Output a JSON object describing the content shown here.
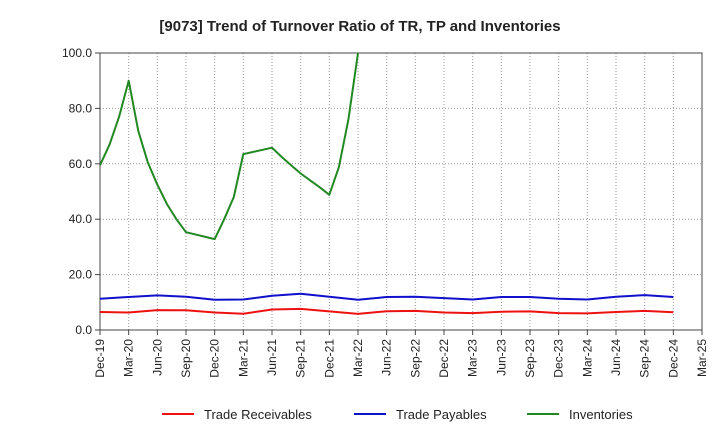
{
  "chart_data": {
    "type": "line",
    "title": "[9073]  Trend of Turnover Ratio of TR, TP and Inventories",
    "xlabel": "",
    "ylabel": "",
    "ylim": [
      0,
      100
    ],
    "yticks": [
      "0.0",
      "20.0",
      "40.0",
      "60.0",
      "80.0",
      "100.0"
    ],
    "grid": true,
    "legend_position": "bottom",
    "categories": [
      "Dec-19",
      "Mar-20",
      "Jun-20",
      "Sep-20",
      "Dec-20",
      "Mar-21",
      "Jun-21",
      "Sep-21",
      "Dec-21",
      "Mar-22",
      "Jun-22",
      "Sep-22",
      "Dec-22",
      "Mar-23",
      "Jun-23",
      "Sep-23",
      "Dec-23",
      "Mar-24",
      "Jun-24",
      "Sep-24",
      "Dec-24",
      "Mar-25"
    ],
    "series": [
      {
        "name": "Trade Receivables",
        "color": "#ee1111",
        "x": [
          "Dec-19",
          "Mar-20",
          "Jun-20",
          "Sep-20",
          "Dec-20",
          "Mar-21",
          "Jun-21",
          "Sep-21",
          "Dec-21",
          "Mar-22",
          "Jun-22",
          "Sep-22",
          "Dec-22",
          "Mar-23",
          "Jun-23",
          "Sep-23",
          "Dec-23",
          "Mar-24",
          "Jun-24",
          "Sep-24",
          "Dec-24"
        ],
        "values": [
          6.5,
          6.3,
          7.2,
          7.1,
          6.3,
          5.9,
          7.4,
          7.6,
          6.7,
          5.8,
          6.8,
          6.9,
          6.3,
          6.1,
          6.6,
          6.7,
          6.1,
          6.0,
          6.5,
          6.9,
          6.4
        ]
      },
      {
        "name": "Trade Payables",
        "color": "#1111cc",
        "x": [
          "Dec-19",
          "Mar-20",
          "Jun-20",
          "Sep-20",
          "Dec-20",
          "Mar-21",
          "Jun-21",
          "Sep-21",
          "Dec-21",
          "Mar-22",
          "Jun-22",
          "Sep-22",
          "Dec-22",
          "Mar-23",
          "Jun-23",
          "Sep-23",
          "Dec-23",
          "Mar-24",
          "Jun-24",
          "Sep-24",
          "Dec-24"
        ],
        "values": [
          11.3,
          11.9,
          12.5,
          12.0,
          10.9,
          11.0,
          12.4,
          13.1,
          12.0,
          10.9,
          11.9,
          12.0,
          11.5,
          11.0,
          11.9,
          11.9,
          11.3,
          11.0,
          12.0,
          12.6,
          11.9
        ]
      },
      {
        "name": "Inventories",
        "color": "#228822",
        "x": [
          "Dec-19",
          "Jan-20",
          "Feb-20",
          "Mar-20",
          "Apr-20",
          "May-20",
          "Jun-20",
          "Jul-20",
          "Aug-20",
          "Sep-20",
          "Dec-20",
          "Jan-21",
          "Feb-21",
          "Mar-21",
          "Jun-21",
          "Jul-21",
          "Aug-21",
          "Sep-21",
          "Oct-21",
          "Nov-21",
          "Dec-21",
          "Jan-22",
          "Feb-22",
          "Mar-22"
        ],
        "values": [
          59.5,
          67.0,
          77.0,
          90.0,
          72.0,
          60.5,
          52.5,
          45.5,
          40.0,
          35.3,
          32.8,
          40.0,
          48.0,
          63.5,
          65.8,
          62.5,
          59.5,
          56.5,
          54.0,
          51.5,
          48.8,
          58.8,
          76.0,
          100.0
        ]
      }
    ]
  }
}
